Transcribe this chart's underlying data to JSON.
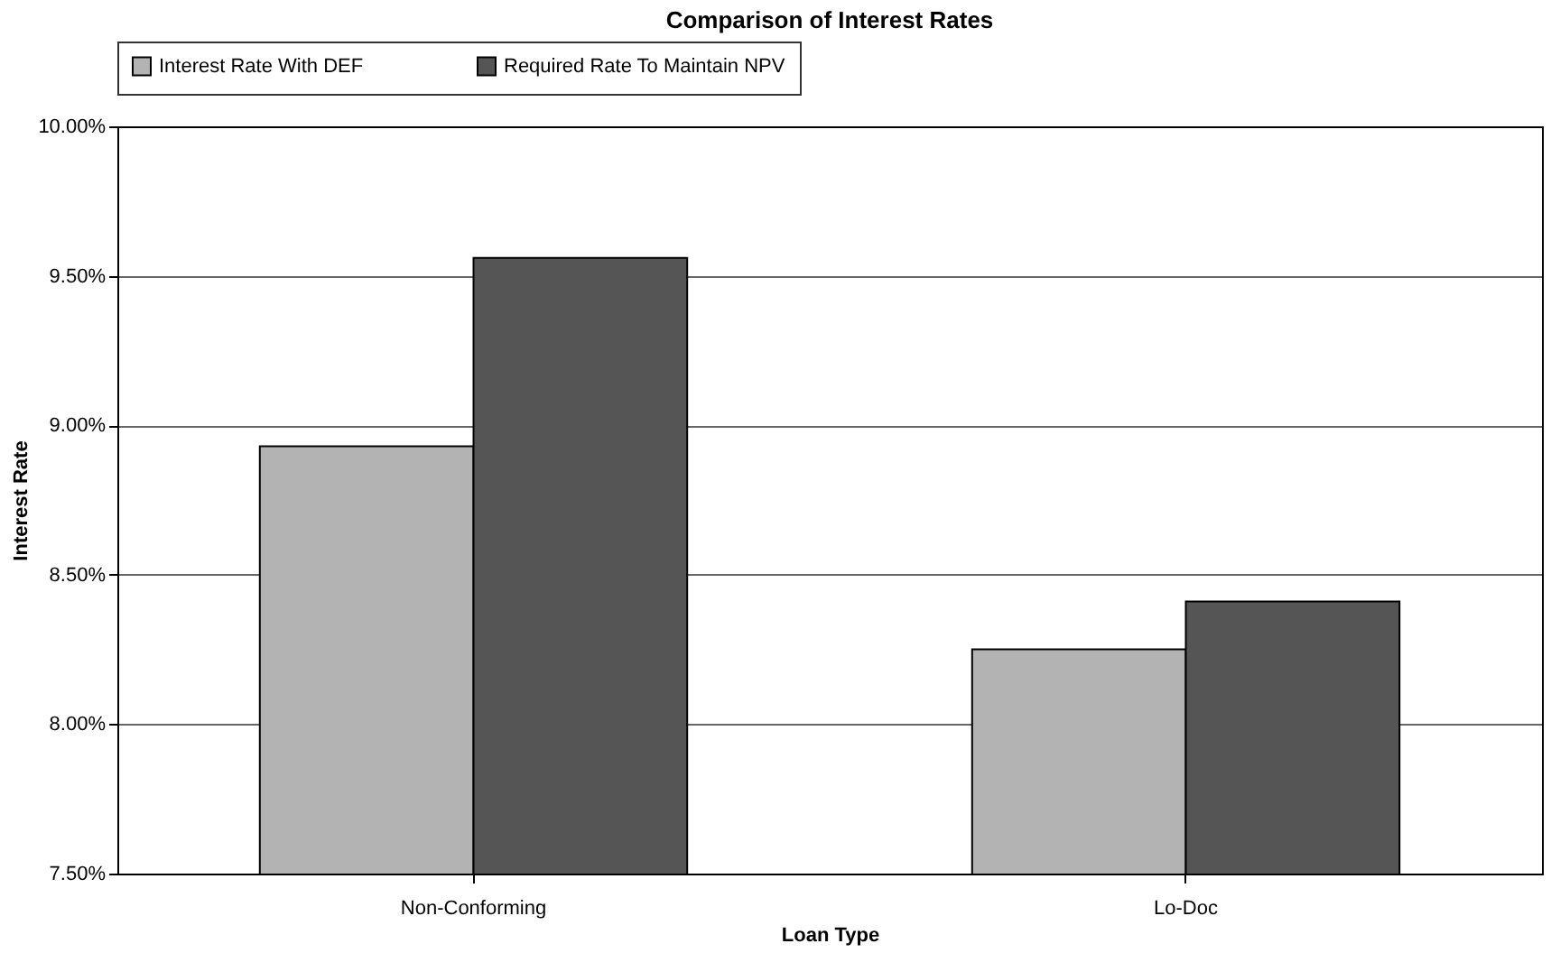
{
  "chart_data": {
    "type": "bar",
    "title": "Comparison of Interest Rates",
    "xlabel": "Loan Type",
    "ylabel": "Interest Rate",
    "categories": [
      "Non-Conforming",
      "Lo-Doc"
    ],
    "series": [
      {
        "name": "Interest Rate With DEF",
        "color": "#b3b3b3",
        "values": [
          8.93,
          8.25
        ]
      },
      {
        "name": "Required Rate To Maintain NPV",
        "color": "#555555",
        "values": [
          9.56,
          8.41
        ]
      }
    ],
    "ylim": [
      7.5,
      10.0
    ],
    "yticks": [
      {
        "value": 7.5,
        "label": "7.50%"
      },
      {
        "value": 8.0,
        "label": "8.00%"
      },
      {
        "value": 8.5,
        "label": "8.50%"
      },
      {
        "value": 9.0,
        "label": "9.00%"
      },
      {
        "value": 9.5,
        "label": "9.50%"
      },
      {
        "value": 10.0,
        "label": "10.00%"
      }
    ],
    "grid": "y",
    "legend": "top"
  }
}
